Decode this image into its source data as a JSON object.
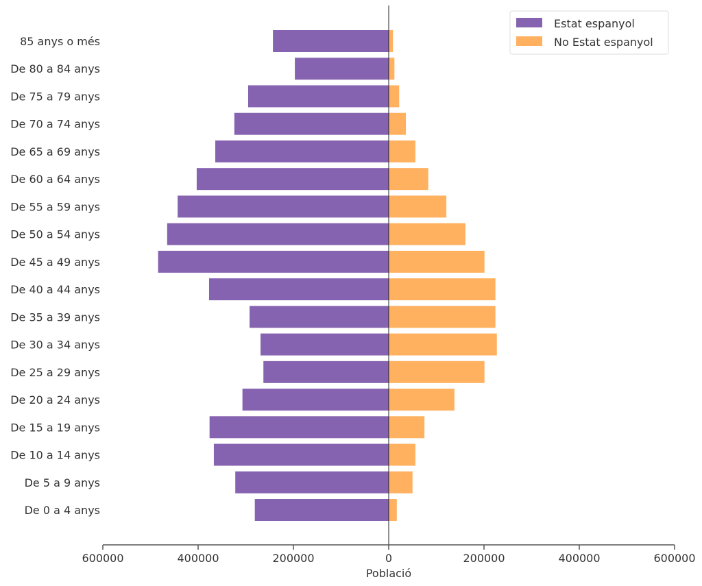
{
  "chart_data": {
    "type": "bar",
    "orientation": "horizontal-pyramid",
    "title": "",
    "xlabel": "Població",
    "ylabel": "",
    "xlim": [
      -600000,
      600000
    ],
    "xticks": [
      -600000,
      -400000,
      -200000,
      0,
      200000,
      400000,
      600000
    ],
    "xtick_labels": [
      "600000",
      "400000",
      "200000",
      "0",
      "200000",
      "400000",
      "600000"
    ],
    "categories": [
      "85 anys o més",
      "De 80 a 84 anys",
      "De 75 a 79 anys",
      "De 70 a 74 anys",
      "De 65 a 69 anys",
      "De 60 a 64 anys",
      "De 55 a 59 anys",
      "De 50 a 54 anys",
      "De 45 a 49 anys",
      "De 40 a 44 anys",
      "De 35 a 39 anys",
      "De 30 a 34 anys",
      "De 25 a 29 anys",
      "De 20 a 24 anys",
      "De 15 a 19 anys",
      "De 10 a 14 anys",
      "De 5 a 9 anys",
      "De 0 a 4 anys"
    ],
    "series": [
      {
        "name": "Estat espanyol",
        "color": "#8663b0",
        "side": "left",
        "values": [
          243000,
          197000,
          295000,
          324000,
          364000,
          403000,
          443000,
          465000,
          484000,
          377000,
          292000,
          269000,
          263000,
          307000,
          376000,
          367000,
          322000,
          281000
        ]
      },
      {
        "name": "No Estat espanyol",
        "color": "#ffb160",
        "side": "right",
        "values": [
          9000,
          12000,
          22000,
          36000,
          56000,
          83000,
          121000,
          161000,
          201000,
          224000,
          224000,
          227000,
          201000,
          138000,
          75000,
          56000,
          50000,
          17000
        ]
      }
    ],
    "legend": "top-right",
    "grid": false
  }
}
